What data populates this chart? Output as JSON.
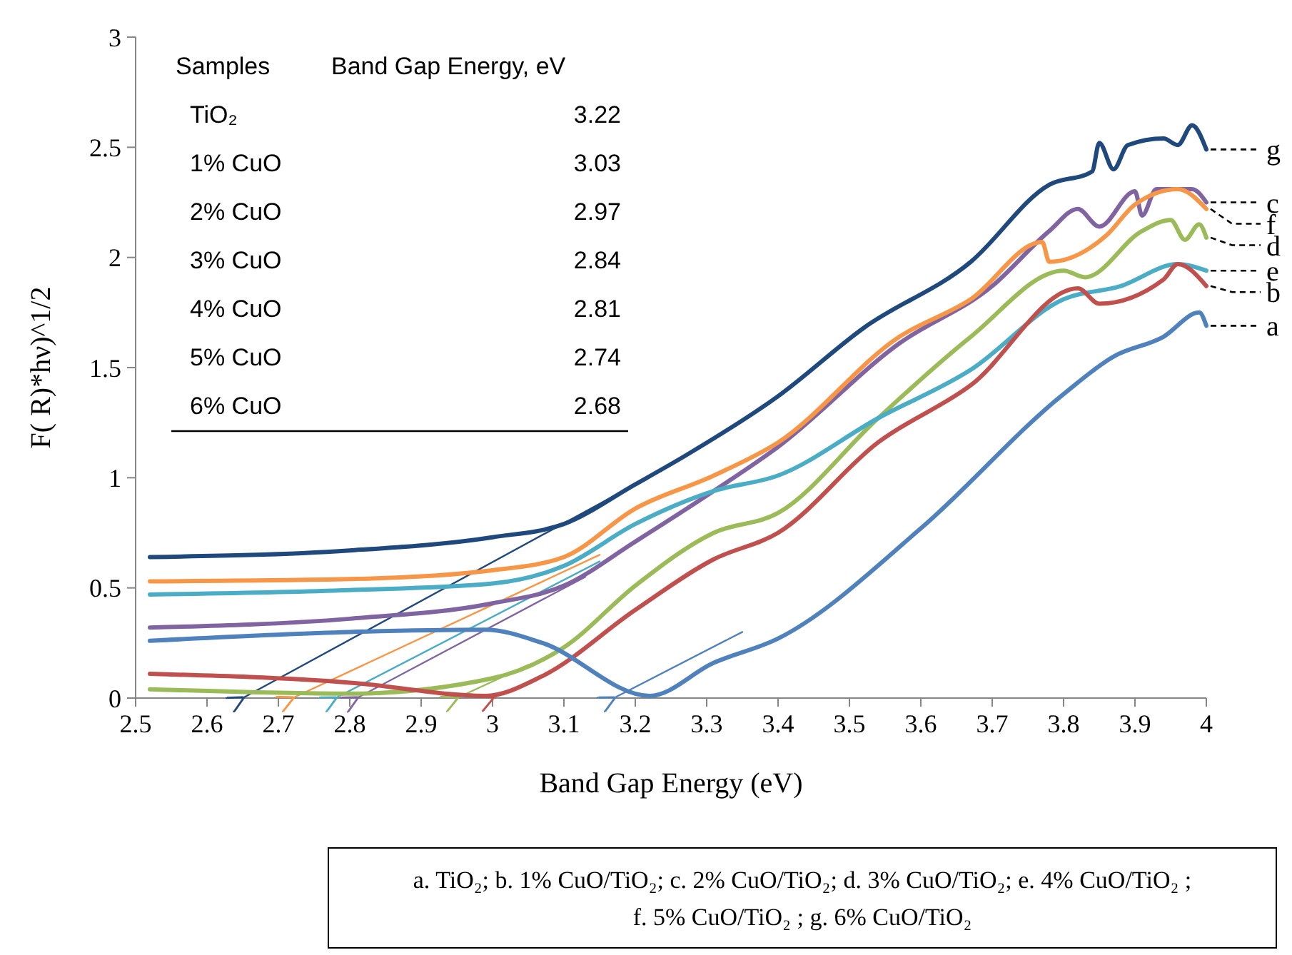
{
  "chart_data": {
    "type": "line",
    "xlabel": "Band Gap Energy (eV)",
    "ylabel": "F( R)*hν)^1/2",
    "xlim": [
      2.5,
      4
    ],
    "xticks": [
      2.5,
      2.6,
      2.7,
      2.8,
      2.9,
      3,
      3.1,
      3.2,
      3.3,
      3.4,
      3.5,
      3.6,
      3.7,
      3.8,
      3.9,
      4
    ],
    "ylim": [
      0,
      3
    ],
    "yticks": [
      0,
      0.5,
      1,
      1.5,
      2,
      2.5,
      3
    ],
    "grid": false,
    "series": [
      {
        "name": "g",
        "color": "#1f497d",
        "x": [
          2.52,
          2.8,
          3.0,
          3.1,
          3.2,
          3.27,
          3.4,
          3.52,
          3.67,
          3.78,
          3.84,
          3.85,
          3.87,
          3.89,
          3.94,
          3.96,
          3.98,
          4.0
        ],
        "values": [
          0.64,
          0.67,
          0.73,
          0.79,
          0.97,
          1.1,
          1.37,
          1.68,
          1.98,
          2.33,
          2.39,
          2.52,
          2.4,
          2.51,
          2.54,
          2.51,
          2.6,
          2.49
        ]
      },
      {
        "name": "c",
        "color": "#8064a2",
        "x": [
          2.52,
          2.8,
          3.0,
          3.1,
          3.2,
          3.31,
          3.4,
          3.57,
          3.7,
          3.78,
          3.82,
          3.85,
          3.9,
          3.91,
          3.93,
          3.98,
          4.0
        ],
        "values": [
          0.32,
          0.36,
          0.43,
          0.51,
          0.71,
          0.94,
          1.14,
          1.61,
          1.87,
          2.12,
          2.22,
          2.14,
          2.3,
          2.19,
          2.31,
          2.31,
          2.25
        ]
      },
      {
        "name": "f",
        "color": "#f79646",
        "x": [
          2.52,
          2.8,
          3.0,
          3.1,
          3.2,
          3.31,
          3.4,
          3.57,
          3.67,
          3.77,
          3.78,
          3.86,
          3.9,
          3.96,
          4.0
        ],
        "values": [
          0.53,
          0.54,
          0.58,
          0.64,
          0.86,
          1.01,
          1.16,
          1.64,
          1.81,
          2.07,
          1.98,
          2.1,
          2.24,
          2.31,
          2.22
        ]
      },
      {
        "name": "d",
        "color": "#9bbb59",
        "x": [
          2.52,
          2.8,
          3.0,
          3.1,
          3.2,
          3.31,
          3.4,
          3.54,
          3.67,
          3.8,
          3.83,
          3.91,
          3.95,
          3.97,
          3.99,
          4.0
        ],
        "values": [
          0.04,
          0.02,
          0.09,
          0.23,
          0.51,
          0.75,
          0.84,
          1.27,
          1.64,
          1.94,
          1.91,
          2.12,
          2.17,
          2.08,
          2.15,
          2.09
        ]
      },
      {
        "name": "e",
        "color": "#4bacc6",
        "x": [
          2.52,
          2.8,
          3.0,
          3.1,
          3.2,
          3.31,
          3.4,
          3.54,
          3.67,
          3.8,
          3.88,
          3.96,
          4.0
        ],
        "values": [
          0.47,
          0.49,
          0.52,
          0.6,
          0.79,
          0.94,
          1.01,
          1.27,
          1.49,
          1.81,
          1.87,
          1.97,
          1.94
        ]
      },
      {
        "name": "b",
        "color": "#c0504d",
        "x": [
          2.52,
          2.8,
          2.99,
          3.07,
          3.2,
          3.31,
          3.4,
          3.54,
          3.67,
          3.82,
          3.85,
          3.94,
          3.96,
          4.0
        ],
        "values": [
          0.11,
          0.07,
          0.01,
          0.1,
          0.4,
          0.63,
          0.75,
          1.16,
          1.42,
          1.86,
          1.79,
          1.9,
          1.97,
          1.87
        ]
      },
      {
        "name": "a",
        "color": "#4f81bd",
        "x": [
          2.52,
          2.8,
          2.99,
          3.07,
          3.22,
          3.31,
          3.4,
          3.6,
          3.8,
          3.87,
          3.94,
          3.99,
          4.0
        ],
        "values": [
          0.26,
          0.3,
          0.31,
          0.25,
          0.01,
          0.16,
          0.27,
          0.77,
          1.38,
          1.55,
          1.64,
          1.75,
          1.69
        ]
      },
      {
        "color": "#1f497d",
        "x": [
          2.65,
          3.2
        ],
        "values": [
          0,
          0.97
        ]
      },
      {
        "color": "#f79646",
        "x": [
          2.72,
          3.15
        ],
        "values": [
          0,
          0.65
        ]
      },
      {
        "color": "#4bacc6",
        "x": [
          2.78,
          3.15
        ],
        "values": [
          0,
          0.62
        ]
      },
      {
        "color": "#8064a2",
        "x": [
          2.81,
          3.13
        ],
        "values": [
          0,
          0.55
        ]
      },
      {
        "color": "#9bbb59",
        "x": [
          2.95,
          3.05
        ],
        "values": [
          0,
          0.15
        ]
      },
      {
        "color": "#c0504d",
        "x": [
          3.0,
          3.07
        ],
        "values": [
          0,
          0.1
        ]
      },
      {
        "color": "#4f81bd",
        "x": [
          3.17,
          3.35
        ],
        "values": [
          0,
          0.3
        ]
      }
    ],
    "annotations": [
      "Samples",
      "Band Gap Energy, eV",
      "TiO₂",
      "3.22",
      "1% CuO",
      "3.03",
      "2% CuO",
      "2.97",
      "3% CuO",
      "2.84",
      "4% CuO",
      "2.81",
      "5% CuO",
      "2.74",
      "6% CuO",
      "2.68",
      "a. TiO₂; b. 1% CuO/TiO₂; c. 2% CuO/TiO₂; d. 3% CuO/TiO₂; e. 4% CuO/TiO₂ ;",
      "f. 5% CuO/TiO₂ ; g. 6% CuO/TiO₂"
    ]
  }
}
